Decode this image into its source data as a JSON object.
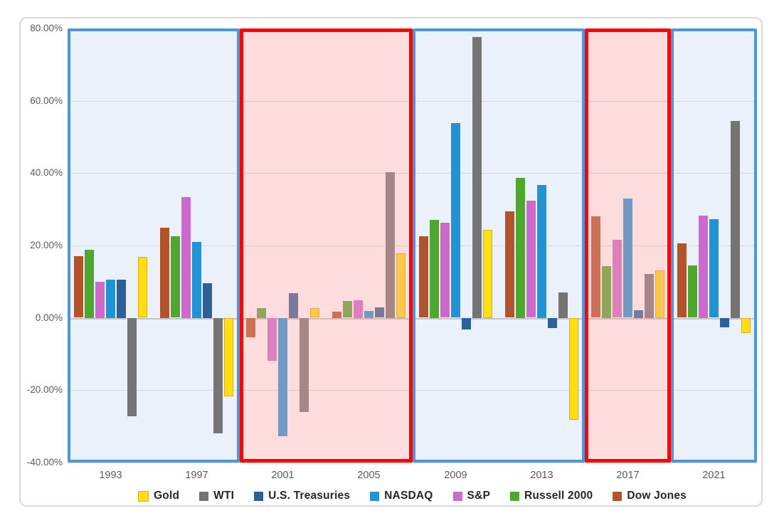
{
  "chart_data": {
    "type": "bar",
    "title": "",
    "categories": [
      "1993",
      "1997",
      "2001",
      "2005",
      "2009",
      "2013",
      "2017",
      "2021"
    ],
    "series": [
      {
        "name": "Dow Jones",
        "color": "#B2532B",
        "values": [
          17.0,
          24.9,
          -5.4,
          1.8,
          22.5,
          29.4,
          28.0,
          20.5
        ]
      },
      {
        "name": "Russell 2000",
        "color": "#4EA72E",
        "values": [
          18.8,
          22.5,
          2.7,
          4.6,
          27.1,
          38.7,
          14.3,
          14.4
        ]
      },
      {
        "name": "S&P",
        "color": "#CD69CC",
        "values": [
          10.0,
          33.4,
          -11.9,
          4.9,
          26.2,
          32.3,
          21.5,
          28.3
        ]
      },
      {
        "name": "NASDAQ",
        "color": "#2093D3",
        "values": [
          10.6,
          21.0,
          -32.7,
          2.0,
          53.8,
          36.7,
          32.9,
          27.2
        ]
      },
      {
        "name": "U.S. Treasuries",
        "color": "#2D5F9B",
        "values": [
          10.6,
          9.6,
          6.8,
          2.8,
          -3.2,
          -2.8,
          2.1,
          -2.6
        ]
      },
      {
        "name": "WTI",
        "color": "#747474",
        "values": [
          -27.2,
          -31.8,
          -26.0,
          40.3,
          77.7,
          7.0,
          12.2,
          54.4
        ]
      },
      {
        "name": "Gold",
        "color": "#FFDF12",
        "border": "#D9AC1E",
        "values": [
          16.8,
          -21.6,
          2.6,
          17.9,
          24.4,
          -28.2,
          13.2,
          -4.1
        ]
      }
    ],
    "legend_order": [
      "Gold",
      "WTI",
      "U.S. Treasuries",
      "NASDAQ",
      "S&P",
      "Russell 2000",
      "Dow Jones"
    ],
    "legend_position": "bottom",
    "ylim": [
      -40,
      80
    ],
    "y_ticks": [
      {
        "label": "80.00%",
        "value": 80
      },
      {
        "label": "60.00%",
        "value": 60
      },
      {
        "label": "40.00%",
        "value": 40
      },
      {
        "label": "20.00%",
        "value": 20
      },
      {
        "label": "0.00%",
        "value": 0
      },
      {
        "label": "-20.00%",
        "value": -20
      },
      {
        "label": "-40.00%",
        "value": -40
      }
    ],
    "grid": true,
    "highlight_regions": [
      {
        "start_category": "1993",
        "end_category": "1997",
        "style": "blue"
      },
      {
        "start_category": "2001",
        "end_category": "2005",
        "style": "red"
      },
      {
        "start_category": "2009",
        "end_category": "2013",
        "style": "blue"
      },
      {
        "start_category": "2017",
        "end_category": "2017",
        "style": "red"
      },
      {
        "start_category": "2021",
        "end_category": "2021",
        "style": "blue"
      }
    ],
    "colors": {
      "blue_region_fill": "#EAF1FA",
      "blue_region_border": "#4E95D9",
      "red_region_border": "#FE0000",
      "red_region_overlay": "rgba(246,162,162,0.38)",
      "gridline": "#D9D9D9",
      "zero_line": "#C4C4C4",
      "axis_label": "#595959",
      "legend_text": "#262626",
      "frame_border": "#D9D9D9",
      "background": "#FFFFFF"
    }
  }
}
